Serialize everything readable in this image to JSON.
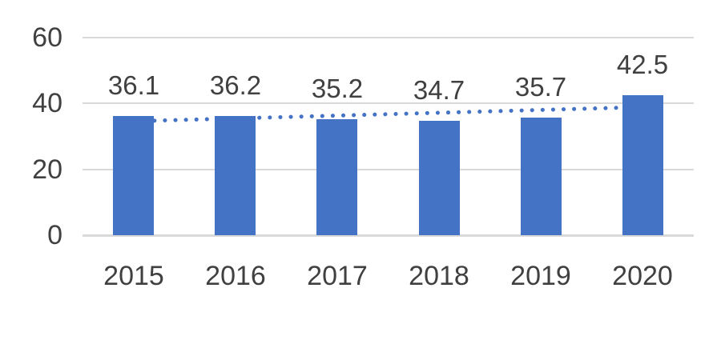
{
  "chart_data": {
    "type": "bar",
    "categories": [
      "2015",
      "2016",
      "2017",
      "2018",
      "2019",
      "2020"
    ],
    "values": [
      36.1,
      36.2,
      35.2,
      34.7,
      35.7,
      42.5
    ],
    "title": "",
    "xlabel": "",
    "ylabel": "",
    "ylim": [
      0,
      60
    ],
    "yticks": [
      0,
      20,
      40,
      60
    ],
    "grid": true,
    "legend": false,
    "data_labels": true,
    "data_label_decimals": 1,
    "trendline": {
      "type": "linear",
      "style": "dotted",
      "start_value": 34.6,
      "end_value": 38.9
    }
  },
  "colors": {
    "bar": "#4472C4",
    "trendline": "#4472C4",
    "gridline": "#D9D9D9",
    "axis_text": "#404040",
    "data_label_text": "#404040",
    "background": "#FFFFFF"
  }
}
